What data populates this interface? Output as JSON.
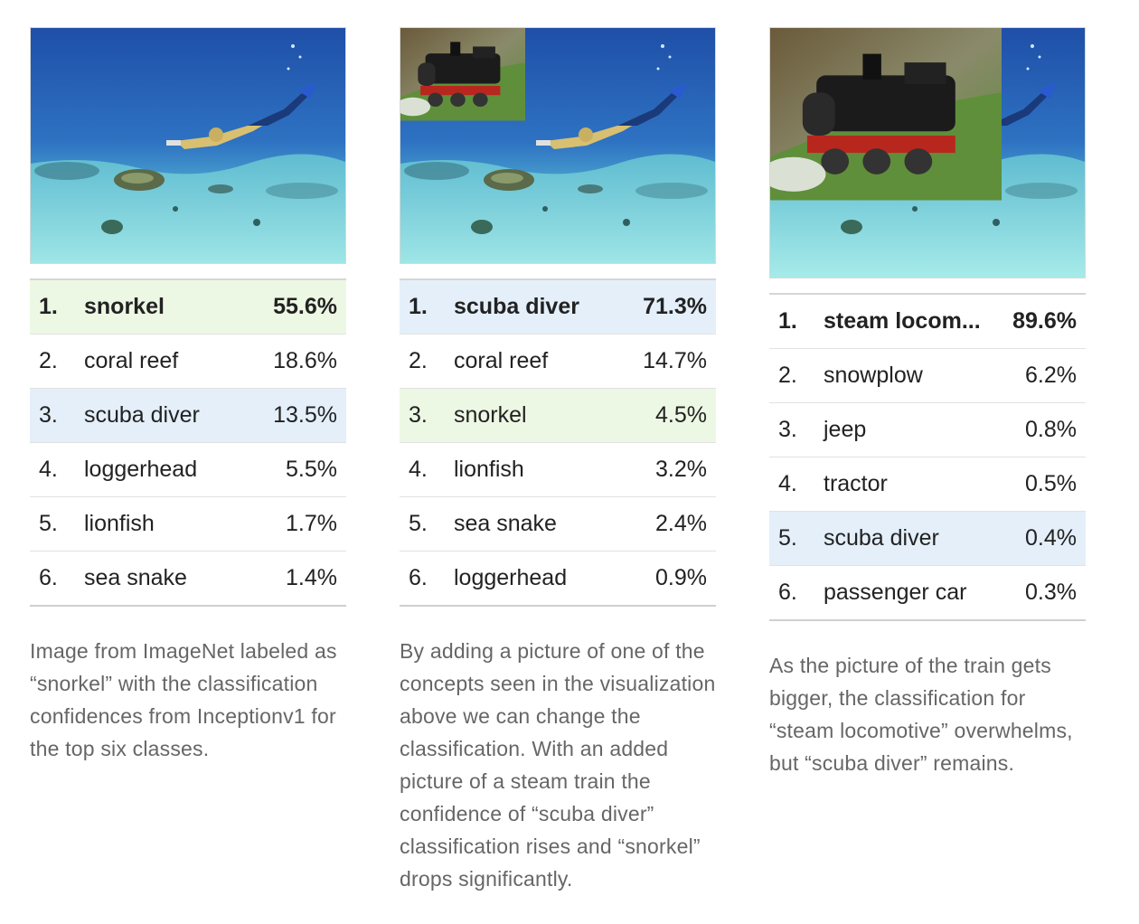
{
  "panels": [
    {
      "rows": [
        {
          "rank": "1.",
          "label": "snorkel",
          "pct": "55.6%"
        },
        {
          "rank": "2.",
          "label": "coral reef",
          "pct": "18.6%"
        },
        {
          "rank": "3.",
          "label": "scuba diver",
          "pct": "13.5%"
        },
        {
          "rank": "4.",
          "label": "loggerhead",
          "pct": "5.5%"
        },
        {
          "rank": "5.",
          "label": "lionfish",
          "pct": "1.7%"
        },
        {
          "rank": "6.",
          "label": "sea snake",
          "pct": "1.4%"
        }
      ],
      "caption": "Image from ImageNet labeled as “snorkel” with the classification confidences from Inceptionv1 for the top six classes."
    },
    {
      "rows": [
        {
          "rank": "1.",
          "label": "scuba diver",
          "pct": "71.3%"
        },
        {
          "rank": "2.",
          "label": "coral reef",
          "pct": "14.7%"
        },
        {
          "rank": "3.",
          "label": "snorkel",
          "pct": "4.5%"
        },
        {
          "rank": "4.",
          "label": "lionfish",
          "pct": "3.2%"
        },
        {
          "rank": "5.",
          "label": "sea snake",
          "pct": "2.4%"
        },
        {
          "rank": "6.",
          "label": "loggerhead",
          "pct": "0.9%"
        }
      ],
      "caption": "By adding a picture of one of the concepts seen in the visualization above we can change the classification. With an added picture of a steam train the confidence of “scuba diver” classification rises and “snorkel” drops significantly."
    },
    {
      "rows": [
        {
          "rank": "1.",
          "label": "steam locom...",
          "pct": "89.6%"
        },
        {
          "rank": "2.",
          "label": "snowplow",
          "pct": "6.2%"
        },
        {
          "rank": "3.",
          "label": "jeep",
          "pct": "0.8%"
        },
        {
          "rank": "4.",
          "label": "tractor",
          "pct": "0.5%"
        },
        {
          "rank": "5.",
          "label": "scuba diver",
          "pct": "0.4%"
        },
        {
          "rank": "6.",
          "label": "passenger car",
          "pct": "0.3%"
        }
      ],
      "caption": "As the picture of the train gets bigger, the classification for “steam locomotive” overwhelms, but “scuba diver” remains."
    }
  ],
  "colors": {
    "snorkel_highlight": "#edf8e4",
    "scuba_diver_highlight": "#e4effa",
    "caption_text": "#666666"
  },
  "images": [
    {
      "content": "underwater-snorkel-photo"
    },
    {
      "content": "underwater-photo-with-small-steam-train-inset"
    },
    {
      "content": "underwater-photo-with-large-steam-train-inset"
    }
  ]
}
